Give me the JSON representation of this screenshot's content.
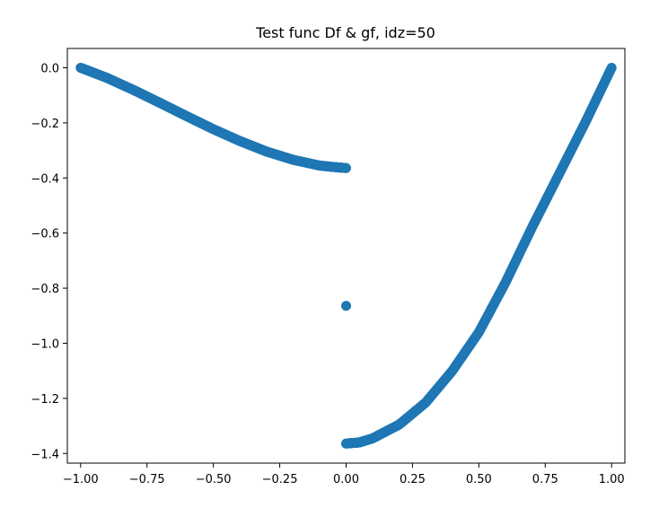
{
  "chart_data": {
    "type": "scatter",
    "title": "Test func Df & gf, idz=50",
    "xlabel": "",
    "ylabel": "",
    "xlim": [
      -1.05,
      1.05
    ],
    "ylim": [
      -1.435,
      0.07
    ],
    "grid": false,
    "marker_color": "#1f77b4",
    "x_ticks": [
      -1.0,
      -0.75,
      -0.5,
      -0.25,
      0.0,
      0.25,
      0.5,
      0.75,
      1.0
    ],
    "x_tick_labels": [
      "−1.00",
      "−0.75",
      "−0.50",
      "−0.25",
      "0.00",
      "0.25",
      "0.50",
      "0.75",
      "1.00"
    ],
    "y_ticks": [
      0.0,
      -0.2,
      -0.4,
      -0.6,
      -0.8,
      -1.0,
      -1.2,
      -1.4
    ],
    "y_tick_labels": [
      "0.0",
      "−0.2",
      "−0.4",
      "−0.6",
      "−0.8",
      "−1.0",
      "−1.2",
      "−1.4"
    ],
    "series": [
      {
        "values": [
          {
            "x": -1.0,
            "y": 0.0
          },
          {
            "x": -0.9,
            "y": -0.037
          },
          {
            "x": -0.8,
            "y": -0.081
          },
          {
            "x": -0.7,
            "y": -0.128
          },
          {
            "x": -0.6,
            "y": -0.176
          },
          {
            "x": -0.5,
            "y": -0.223
          },
          {
            "x": -0.4,
            "y": -0.266
          },
          {
            "x": -0.3,
            "y": -0.304
          },
          {
            "x": -0.2,
            "y": -0.334
          },
          {
            "x": -0.1,
            "y": -0.355
          },
          {
            "x": -0.05,
            "y": -0.36
          },
          {
            "x": 0.0,
            "y": -0.364
          },
          {
            "x": 0.0,
            "y": -0.864
          },
          {
            "x": 0.0,
            "y": -1.364
          },
          {
            "x": 0.05,
            "y": -1.36
          },
          {
            "x": 0.1,
            "y": -1.345
          },
          {
            "x": 0.2,
            "y": -1.295
          },
          {
            "x": 0.3,
            "y": -1.215
          },
          {
            "x": 0.4,
            "y": -1.1
          },
          {
            "x": 0.5,
            "y": -0.96
          },
          {
            "x": 0.6,
            "y": -0.78
          },
          {
            "x": 0.7,
            "y": -0.58
          },
          {
            "x": 0.8,
            "y": -0.39
          },
          {
            "x": 0.9,
            "y": -0.2
          },
          {
            "x": 1.0,
            "y": 0.0
          }
        ]
      }
    ]
  }
}
